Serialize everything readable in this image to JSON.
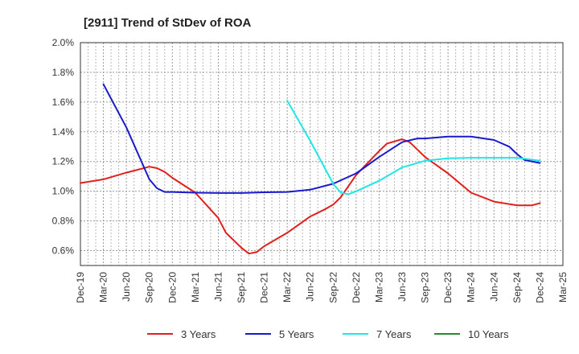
{
  "chart_data": {
    "type": "line",
    "title": "[2911]  Trend of StDev of ROA",
    "xlabel": "",
    "ylabel": "",
    "ylim": [
      0.5,
      2.0
    ],
    "yticks": [
      0.6,
      0.8,
      1.0,
      1.2,
      1.4,
      1.6,
      1.8,
      2.0
    ],
    "ytick_labels": [
      "0.6%",
      "0.8%",
      "1.0%",
      "1.2%",
      "1.4%",
      "1.6%",
      "1.8%",
      "2.0%"
    ],
    "x_categories": [
      "Dec-19",
      "Mar-20",
      "Jun-20",
      "Sep-20",
      "Dec-20",
      "Mar-21",
      "Jun-21",
      "Sep-21",
      "Dec-21",
      "Mar-22",
      "Jun-22",
      "Sep-22",
      "Dec-22",
      "Mar-23",
      "Jun-23",
      "Sep-23",
      "Dec-23",
      "Mar-24",
      "Jun-24",
      "Sep-24",
      "Dec-24",
      "Mar-25"
    ],
    "grid": true,
    "legend_position": "bottom",
    "series": [
      {
        "name": "3 Years",
        "color": "#e0201c",
        "points": [
          [
            "Dec-19",
            1.055
          ],
          [
            "Mar-20",
            1.08
          ],
          [
            "Jun-20",
            1.125
          ],
          [
            "Sep-20",
            1.165
          ],
          [
            "Oct-20",
            1.155
          ],
          [
            "Nov-20",
            1.13
          ],
          [
            "Dec-20",
            1.09
          ],
          [
            "Mar-21",
            0.99
          ],
          [
            "Jun-21",
            0.82
          ],
          [
            "Jul-21",
            0.72
          ],
          [
            "Sep-21",
            0.62
          ],
          [
            "Oct-21",
            0.58
          ],
          [
            "Nov-21",
            0.59
          ],
          [
            "Dec-21",
            0.63
          ],
          [
            "Mar-22",
            0.72
          ],
          [
            "Jun-22",
            0.83
          ],
          [
            "Aug-22",
            0.88
          ],
          [
            "Sep-22",
            0.91
          ],
          [
            "Oct-22",
            0.96
          ],
          [
            "Dec-22",
            1.11
          ],
          [
            "Mar-23",
            1.27
          ],
          [
            "Apr-23",
            1.32
          ],
          [
            "Jun-23",
            1.35
          ],
          [
            "Jul-23",
            1.33
          ],
          [
            "Sep-23",
            1.23
          ],
          [
            "Dec-23",
            1.12
          ],
          [
            "Mar-24",
            0.99
          ],
          [
            "Jun-24",
            0.93
          ],
          [
            "Sep-24",
            0.905
          ],
          [
            "Nov-24",
            0.905
          ],
          [
            "Dec-24",
            0.92
          ]
        ]
      },
      {
        "name": "5 Years",
        "color": "#1a1acc",
        "points": [
          [
            "Mar-20",
            1.72
          ],
          [
            "Jun-20",
            1.43
          ],
          [
            "Sep-20",
            1.08
          ],
          [
            "Oct-20",
            1.02
          ],
          [
            "Nov-20",
            0.995
          ],
          [
            "Dec-20",
            0.995
          ],
          [
            "Mar-21",
            0.99
          ],
          [
            "Jun-21",
            0.988
          ],
          [
            "Sep-21",
            0.988
          ],
          [
            "Dec-21",
            0.993
          ],
          [
            "Mar-22",
            0.995
          ],
          [
            "Jun-22",
            1.01
          ],
          [
            "Sep-22",
            1.05
          ],
          [
            "Dec-22",
            1.12
          ],
          [
            "Mar-23",
            1.23
          ],
          [
            "Jun-23",
            1.33
          ],
          [
            "Aug-23",
            1.355
          ],
          [
            "Sep-23",
            1.355
          ],
          [
            "Dec-23",
            1.368
          ],
          [
            "Mar-24",
            1.368
          ],
          [
            "Jun-24",
            1.345
          ],
          [
            "Aug-24",
            1.3
          ],
          [
            "Sep-24",
            1.25
          ],
          [
            "Oct-24",
            1.21
          ],
          [
            "Dec-24",
            1.19
          ]
        ]
      },
      {
        "name": "7 Years",
        "color": "#22e6e6",
        "points": [
          [
            "Mar-22",
            1.61
          ],
          [
            "Jun-22",
            1.34
          ],
          [
            "Sep-22",
            1.05
          ],
          [
            "Oct-22",
            0.99
          ],
          [
            "Nov-22",
            0.98
          ],
          [
            "Dec-22",
            1.0
          ],
          [
            "Mar-23",
            1.07
          ],
          [
            "Jun-23",
            1.16
          ],
          [
            "Sep-23",
            1.205
          ],
          [
            "Dec-23",
            1.222
          ],
          [
            "Mar-24",
            1.225
          ],
          [
            "Jun-24",
            1.225
          ],
          [
            "Sep-24",
            1.225
          ],
          [
            "Dec-24",
            1.205
          ]
        ]
      },
      {
        "name": "10 Years",
        "color": "#2a8a2a",
        "points": []
      }
    ]
  }
}
